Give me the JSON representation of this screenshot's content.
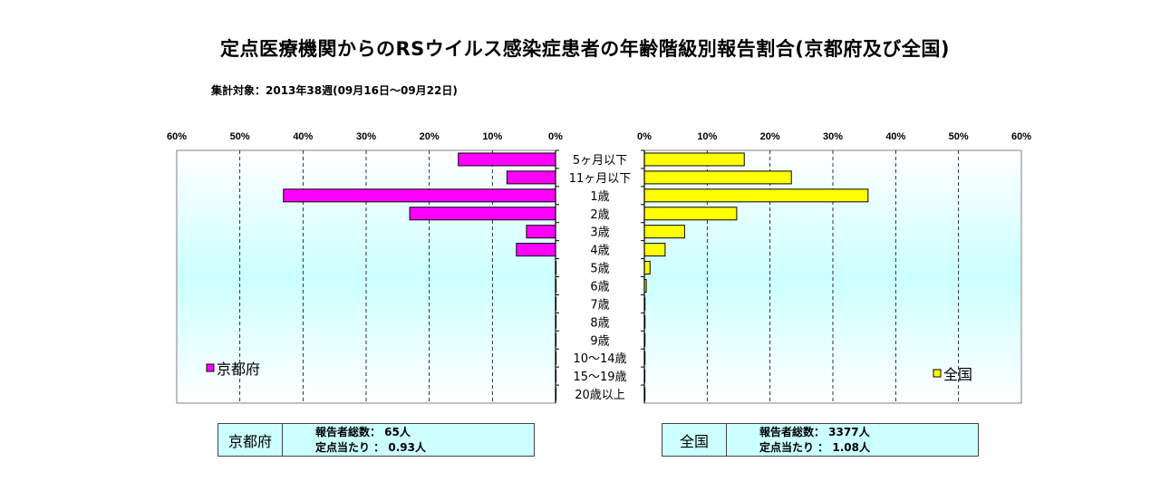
{
  "title": "定点医療機関からのRSウイルス感染症患者の年齢階級別報告割合(京都府及び全国)",
  "subtitle": "集計対象：2013年38週(09月16日～09月22日)",
  "chart_data": {
    "type": "bar",
    "orientation": "horizontal",
    "layout": "back-to-back",
    "categories": [
      "5ヶ月以下",
      "11ヶ月以下",
      "1歳",
      "2歳",
      "3歳",
      "4歳",
      "5歳",
      "6歳",
      "7歳",
      "8歳",
      "9歳",
      "10～14歳",
      "15～19歳",
      "20歳以上"
    ],
    "xlim": [
      0,
      60
    ],
    "x_ticks": [
      "0%",
      "10%",
      "20%",
      "30%",
      "40%",
      "50%",
      "60%"
    ],
    "grid": true,
    "series": [
      {
        "name": "京都府",
        "side": "left",
        "color": "#ff00ff",
        "values": [
          15.4,
          7.7,
          43.1,
          23.1,
          4.6,
          6.2,
          0,
          0,
          0,
          0,
          0,
          0,
          0,
          0
        ],
        "legend_position": "bottom-left"
      },
      {
        "name": "全国",
        "side": "right",
        "color": "#ffff00",
        "values": [
          15.9,
          23.4,
          35.6,
          14.7,
          6.4,
          3.3,
          0.9,
          0.3,
          0.1,
          0.1,
          0.1,
          0.1,
          0.05,
          0.1
        ],
        "legend_position": "bottom-right"
      }
    ]
  },
  "info": {
    "kyoto": {
      "name": "京都府",
      "line1": "報告者総数： 65人",
      "line2": "定点当たり ： 0.93人"
    },
    "national": {
      "name": "全国",
      "line1": "報告者総数： 3377人",
      "line2": "定点当たり ： 1.08人"
    }
  }
}
